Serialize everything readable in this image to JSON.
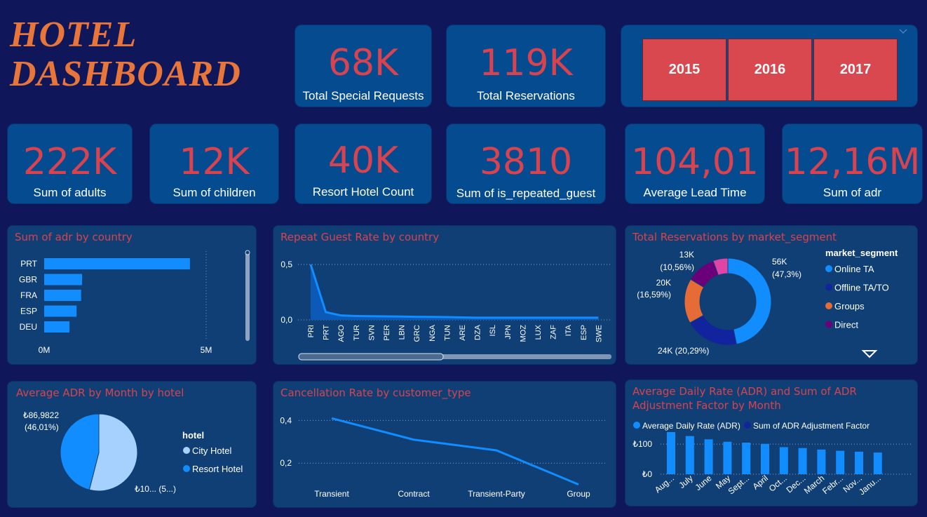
{
  "dashboard_title_line1": "HOTEL",
  "dashboard_title_line2": "DASHBOARD",
  "kpis_top": [
    {
      "value": "68K",
      "label": "Total Special Requests"
    },
    {
      "value": "119K",
      "label": "Total Reservations"
    }
  ],
  "year_slicer": [
    "2015",
    "2016",
    "2017"
  ],
  "kpis_row2": [
    {
      "value": "222K",
      "label": "Sum of adults"
    },
    {
      "value": "12K",
      "label": "Sum of children"
    },
    {
      "value": "40K",
      "label": "Resort Hotel Count"
    },
    {
      "value": "3810",
      "label": "Sum of is_repeated_guest"
    },
    {
      "value": "104,01",
      "label": "Average Lead Time"
    },
    {
      "value": "12,16M",
      "label": "Sum of adr"
    }
  ],
  "colors": {
    "accent_red": "#d9434f",
    "bar_blue": "#118dff",
    "dark_blue": "#12239e",
    "orange": "#e66c37",
    "purple": "#6b007b",
    "pink": "#e044a7",
    "light_blue": "#a6d1ff"
  },
  "chart_data": [
    {
      "type": "bar",
      "title": "Sum of adr by country",
      "orientation": "horizontal",
      "categories": [
        "PRT",
        "GBR",
        "FRA",
        "ESP",
        "DEU"
      ],
      "values": [
        4.5,
        1.17,
        1.14,
        1.0,
        0.78
      ],
      "xticks": [
        "0M",
        "5M"
      ],
      "xlim": [
        0,
        5
      ]
    },
    {
      "type": "area",
      "title": "Repeat Guest Rate by country",
      "categories": [
        "PRI",
        "PRT",
        "AGO",
        "TUR",
        "SVN",
        "PER",
        "LBN",
        "GRC",
        "NGA",
        "TUN",
        "ARE",
        "DZA",
        "ISL",
        "JPN",
        "MOZ",
        "LUX",
        "ZAF",
        "ITA",
        "ESP",
        "SWE"
      ],
      "values": [
        0.5,
        0.07,
        0.04,
        0.035,
        0.033,
        0.032,
        0.03,
        0.028,
        0.027,
        0.025,
        0.022,
        0.02,
        0.02,
        0.02,
        0.02,
        0.02,
        0.02,
        0.02,
        0.02,
        0.02
      ],
      "yticks": [
        "0,5",
        "0,0"
      ],
      "ylim": [
        0,
        0.5
      ]
    },
    {
      "type": "pie",
      "donut": true,
      "title": "Total Reservations by market_segment",
      "legend_title": "market_segment",
      "legend": [
        "Online TA",
        "Offline TA/TO",
        "Groups",
        "Direct"
      ],
      "slices": [
        {
          "name": "Online TA",
          "value": 56,
          "pct": 47.3,
          "label1": "56K",
          "label2": "(47,3%)",
          "color": "#118dff"
        },
        {
          "name": "Offline TA/TO",
          "value": 24,
          "pct": 20.29,
          "label1": "24K (20,29%)",
          "label2": "",
          "color": "#12239e"
        },
        {
          "name": "Groups",
          "value": 20,
          "pct": 16.59,
          "label1": "20K",
          "label2": "(16,59%)",
          "color": "#e66c37"
        },
        {
          "name": "Direct",
          "value": 13,
          "pct": 10.56,
          "label1": "13K",
          "label2": "(10,56%)",
          "color": "#6b007b"
        },
        {
          "name": "",
          "value": 6.6,
          "pct": 5.26,
          "label1": "",
          "label2": "",
          "color": "#e044a7"
        }
      ]
    },
    {
      "type": "pie",
      "title": "Average ADR by Month by hotel",
      "legend_title": "hotel",
      "legend": [
        "City Hotel",
        "Resort Hotel"
      ],
      "slices": [
        {
          "name": "City Hotel",
          "pct": 53.99,
          "label1": "₺10... (5...)",
          "label2": "",
          "color": "#a6d1ff"
        },
        {
          "name": "Resort Hotel",
          "pct": 46.01,
          "label1": "₺86,9822",
          "label2": "(46,01%)",
          "color": "#118dff"
        }
      ]
    },
    {
      "type": "line",
      "title": "Cancellation Rate by customer_type",
      "categories": [
        "Transient",
        "Contract",
        "Transient-Party",
        "Group"
      ],
      "values": [
        0.41,
        0.31,
        0.26,
        0.1
      ],
      "yticks": [
        "0,4",
        "0,2"
      ],
      "ylim": [
        0,
        0.5
      ]
    },
    {
      "type": "bar",
      "title_line1": "Average Daily Rate (ADR) and Sum of ADR",
      "title_line2": "Adjustment Factor by Month",
      "legend": [
        "Average Daily Rate (ADR)",
        "Sum of ADR Adjustment Factor"
      ],
      "categories": [
        "Aug...",
        "July",
        "June",
        "May",
        "Sept...",
        "April",
        "Oct...",
        "Dec...",
        "March",
        "Febr...",
        "Nov...",
        "Janu..."
      ],
      "values": [
        140,
        127,
        116,
        108,
        105,
        101,
        90,
        87,
        82,
        78,
        75,
        72
      ],
      "yticks": [
        "₺100",
        "₺0"
      ],
      "ylim": [
        0,
        175
      ]
    }
  ]
}
